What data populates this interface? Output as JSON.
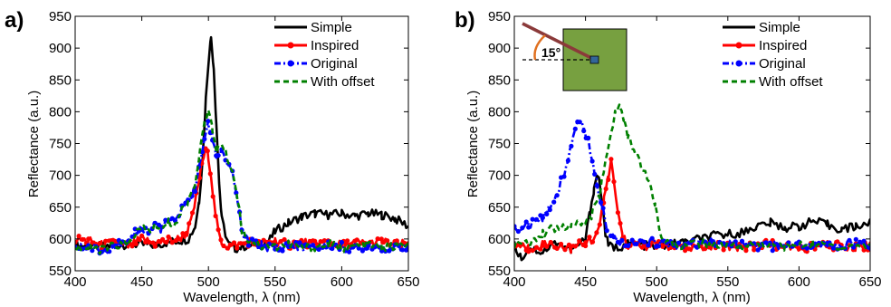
{
  "chart_data": [
    {
      "type": "line",
      "panel_label": "a)",
      "xlabel": "Wavelength, λ (nm)",
      "ylabel": "Reflectance (a.u.)",
      "xlim": [
        400,
        650
      ],
      "ylim": [
        550,
        950
      ],
      "xticks": [
        400,
        450,
        500,
        550,
        600,
        650
      ],
      "yticks": [
        550,
        600,
        650,
        700,
        750,
        800,
        850,
        900,
        950
      ],
      "legend_position": "top-right",
      "series": [
        {
          "name": "Simple",
          "color": "#000000",
          "style": "solid",
          "x": [
            400,
            420,
            440,
            460,
            470,
            480,
            485,
            490,
            493,
            496,
            498,
            500,
            502,
            504,
            506,
            508,
            510,
            515,
            520,
            530,
            545,
            550,
            560,
            570,
            580,
            590,
            600,
            610,
            620,
            630,
            640,
            650
          ],
          "y": [
            590,
            588,
            592,
            590,
            595,
            598,
            600,
            620,
            660,
            740,
            820,
            880,
            918,
            870,
            780,
            690,
            630,
            592,
            585,
            590,
            595,
            612,
            625,
            635,
            640,
            638,
            640,
            636,
            640,
            638,
            632,
            620
          ]
        },
        {
          "name": "Inspired",
          "color": "#ff0000",
          "style": "solid-dots",
          "x": [
            400,
            410,
            420,
            430,
            440,
            450,
            460,
            470,
            478,
            484,
            488,
            492,
            495,
            498,
            500,
            502,
            504,
            506,
            508,
            510,
            515,
            520,
            530,
            540,
            550,
            560,
            570,
            580,
            590,
            600,
            610,
            620,
            630,
            640,
            650
          ],
          "y": [
            600,
            597,
            590,
            595,
            588,
            600,
            592,
            598,
            600,
            610,
            635,
            680,
            720,
            738,
            730,
            700,
            660,
            630,
            605,
            595,
            588,
            590,
            595,
            592,
            598,
            590,
            595,
            592,
            595,
            590,
            594,
            592,
            596,
            590,
            593
          ]
        },
        {
          "name": "Original",
          "color": "#0000ff",
          "style": "dash-dot",
          "x": [
            400,
            410,
            420,
            430,
            440,
            445,
            450,
            455,
            460,
            465,
            470,
            475,
            480,
            485,
            490,
            494,
            497,
            500,
            503,
            506,
            510,
            514,
            518,
            522,
            525,
            530,
            540,
            550,
            560,
            570,
            580,
            590,
            600,
            610,
            620,
            630,
            640,
            650
          ],
          "y": [
            585,
            588,
            580,
            592,
            590,
            612,
            618,
            610,
            625,
            615,
            630,
            625,
            650,
            660,
            680,
            720,
            760,
            780,
            760,
            730,
            740,
            720,
            700,
            660,
            610,
            595,
            590,
            585,
            590,
            588,
            585,
            590,
            588,
            585,
            590,
            588,
            585,
            590
          ]
        },
        {
          "name": "With offset",
          "color": "#008000",
          "style": "dashed",
          "x": [
            400,
            410,
            420,
            430,
            440,
            445,
            450,
            455,
            460,
            465,
            470,
            475,
            480,
            485,
            490,
            494,
            497,
            500,
            503,
            506,
            510,
            514,
            518,
            522,
            525,
            530,
            540,
            550,
            560,
            570,
            580,
            590,
            600,
            610,
            620,
            630,
            640,
            650
          ],
          "y": [
            588,
            585,
            583,
            590,
            592,
            608,
            615,
            612,
            620,
            612,
            626,
            622,
            645,
            660,
            690,
            740,
            790,
            800,
            770,
            740,
            750,
            730,
            705,
            665,
            615,
            598,
            588,
            588,
            592,
            585,
            588,
            592,
            586,
            588,
            592,
            586,
            588,
            590
          ]
        }
      ]
    },
    {
      "type": "line",
      "panel_label": "b)",
      "xlabel": "Wavelength, λ (nm)",
      "ylabel": "Reflectance (a.u.)",
      "xlim": [
        400,
        650
      ],
      "ylim": [
        550,
        950
      ],
      "xticks": [
        400,
        450,
        500,
        550,
        600,
        650
      ],
      "yticks": [
        550,
        600,
        650,
        700,
        750,
        800,
        850,
        900,
        950
      ],
      "legend_position": "top-right",
      "inset": {
        "angle_label": "15°",
        "square_color": "#77a040",
        "rod_color": "#8b3a3a",
        "arc_color": "#e07020",
        "marker_color": "#336699"
      },
      "series": [
        {
          "name": "Simple",
          "color": "#000000",
          "style": "solid",
          "x": [
            400,
            405,
            410,
            420,
            430,
            440,
            445,
            450,
            453,
            456,
            458,
            460,
            462,
            464,
            466,
            470,
            480,
            500,
            520,
            540,
            560,
            570,
            580,
            590,
            600,
            610,
            620,
            630,
            640,
            650
          ],
          "y": [
            590,
            570,
            585,
            580,
            595,
            582,
            590,
            600,
            640,
            680,
            700,
            690,
            650,
            610,
            590,
            585,
            592,
            588,
            595,
            605,
            610,
            620,
            625,
            618,
            620,
            628,
            622,
            615,
            620,
            625
          ]
        },
        {
          "name": "Inspired",
          "color": "#ff0000",
          "style": "solid-dots",
          "x": [
            400,
            410,
            420,
            430,
            440,
            450,
            455,
            460,
            463,
            466,
            468,
            470,
            473,
            476,
            480,
            490,
            500,
            520,
            540,
            560,
            580,
            600,
            620,
            640,
            650
          ],
          "y": [
            590,
            585,
            592,
            590,
            585,
            595,
            600,
            620,
            660,
            700,
            720,
            690,
            640,
            605,
            590,
            588,
            592,
            585,
            590,
            588,
            592,
            585,
            590,
            588,
            590
          ]
        },
        {
          "name": "Original",
          "color": "#0000ff",
          "style": "dash-dot",
          "x": [
            400,
            410,
            420,
            425,
            430,
            435,
            440,
            443,
            446,
            449,
            452,
            455,
            458,
            461,
            465,
            470,
            480,
            500,
            520,
            540,
            560,
            580,
            600,
            620,
            640,
            650
          ],
          "y": [
            615,
            622,
            632,
            650,
            672,
            705,
            745,
            775,
            790,
            772,
            752,
            725,
            690,
            660,
            620,
            600,
            592,
            595,
            590,
            594,
            590,
            588,
            592,
            588,
            594,
            590
          ]
        },
        {
          "name": "With offset",
          "color": "#008000",
          "style": "dashed",
          "x": [
            400,
            410,
            420,
            430,
            440,
            450,
            455,
            460,
            464,
            468,
            471,
            474,
            477,
            480,
            484,
            488,
            492,
            496,
            499,
            502,
            506,
            515,
            530,
            550,
            570,
            590,
            610,
            630,
            650
          ],
          "y": [
            590,
            595,
            610,
            618,
            622,
            625,
            640,
            670,
            720,
            770,
            800,
            808,
            785,
            760,
            740,
            720,
            700,
            680,
            655,
            615,
            595,
            590,
            593,
            588,
            592,
            588,
            592,
            588,
            590
          ]
        }
      ]
    }
  ]
}
